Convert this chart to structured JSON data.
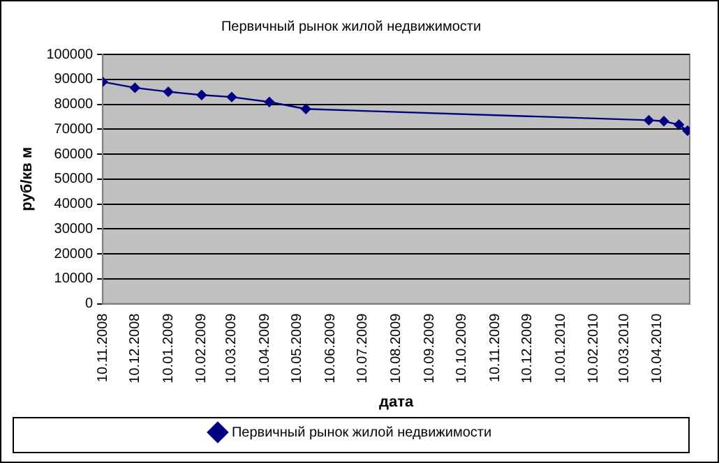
{
  "chart_data": {
    "type": "line",
    "title": "Первичный рынок жилой недвижимости",
    "xlabel": "дата",
    "ylabel": "руб/кв м",
    "x": [
      "2008-11-10",
      "2008-12-10",
      "2009-01-10",
      "2009-02-10",
      "2009-03-10",
      "2009-04-14",
      "2009-05-18",
      "2010-04-02",
      "2010-04-16",
      "2010-04-30",
      "2010-05-08"
    ],
    "series": [
      {
        "name": "Первичный рынок жилой недвижимости",
        "color": "#000080",
        "values": [
          89000,
          86600,
          85000,
          83700,
          82900,
          80900,
          78100,
          73600,
          73200,
          71800,
          69400
        ]
      }
    ],
    "xlim": [
      "2008-11-10",
      "2010-05-10"
    ],
    "xticks": [
      {
        "value": "2008-11-10",
        "label": "10.11.2008"
      },
      {
        "value": "2008-12-10",
        "label": "10.12.2008"
      },
      {
        "value": "2009-01-10",
        "label": "10.01.2009"
      },
      {
        "value": "2009-02-10",
        "label": "10.02.2009"
      },
      {
        "value": "2009-03-10",
        "label": "10.03.2009"
      },
      {
        "value": "2009-04-10",
        "label": "10.04.2009"
      },
      {
        "value": "2009-05-10",
        "label": "10.05.2009"
      },
      {
        "value": "2009-06-10",
        "label": "10.06.2009"
      },
      {
        "value": "2009-07-10",
        "label": "10.07.2009"
      },
      {
        "value": "2009-08-10",
        "label": "10.08.2009"
      },
      {
        "value": "2009-09-10",
        "label": "10.09.2009"
      },
      {
        "value": "2009-10-10",
        "label": "10.10.2009"
      },
      {
        "value": "2009-11-10",
        "label": "10.11.2009"
      },
      {
        "value": "2009-12-10",
        "label": "10.12.2009"
      },
      {
        "value": "2010-01-10",
        "label": "10.01.2010"
      },
      {
        "value": "2010-02-10",
        "label": "10.02.2010"
      },
      {
        "value": "2010-03-10",
        "label": "10.03.2010"
      },
      {
        "value": "2010-04-10",
        "label": "10.04.2010"
      }
    ],
    "ylim": [
      0,
      100000
    ],
    "yticks": [
      0,
      10000,
      20000,
      30000,
      40000,
      50000,
      60000,
      70000,
      80000,
      90000,
      100000
    ],
    "grid": "y",
    "legend": "bottom",
    "marker": "diamond",
    "line_style": "solid"
  }
}
